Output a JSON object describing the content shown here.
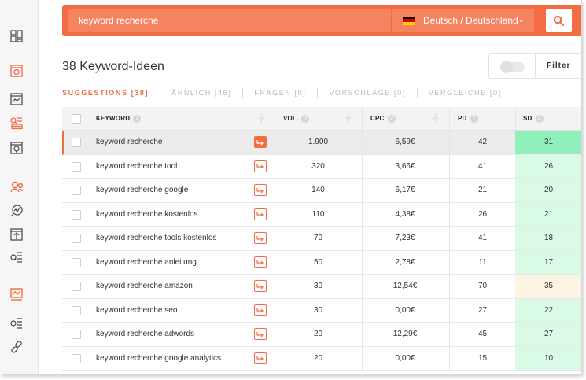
{
  "search": {
    "value": "keyword recherche",
    "language": "Deutsch / Deutschland"
  },
  "header": {
    "title": "38 Keyword-Ideen",
    "filter_label": "Filter"
  },
  "tabs": [
    {
      "label": "SUGGESTIONS [38]",
      "active": true
    },
    {
      "label": "ÄHNLICH [46]",
      "active": false
    },
    {
      "label": "FRAGEN [0]",
      "active": false
    },
    {
      "label": "VORSCHLÄGE [0]",
      "active": false
    },
    {
      "label": "VERGLEICHE [0]",
      "active": false
    }
  ],
  "columns": {
    "keyword": "KEYWORD",
    "vol": "VOL.",
    "cpc": "CPC",
    "pd": "PD",
    "sd": "SD"
  },
  "rows": [
    {
      "keyword": "keyword recherche",
      "vol": "1.900",
      "cpc": "6,59€",
      "pd": "42",
      "sd": "31",
      "sd_color": "#8ff0bc",
      "selected": true
    },
    {
      "keyword": "keyword recherche tool",
      "vol": "320",
      "cpc": "3,66€",
      "pd": "41",
      "sd": "26",
      "sd_color": "#d9fbe6",
      "selected": false
    },
    {
      "keyword": "keyword recherche google",
      "vol": "140",
      "cpc": "6,17€",
      "pd": "21",
      "sd": "20",
      "sd_color": "#d9fbe6",
      "selected": false
    },
    {
      "keyword": "keyword recherche kostenlos",
      "vol": "110",
      "cpc": "4,38€",
      "pd": "26",
      "sd": "21",
      "sd_color": "#d9fbe6",
      "selected": false
    },
    {
      "keyword": "keyword recherche tools kostenlos",
      "vol": "70",
      "cpc": "7,23€",
      "pd": "41",
      "sd": "18",
      "sd_color": "#d9fbe6",
      "selected": false
    },
    {
      "keyword": "keyword recherche anleitung",
      "vol": "50",
      "cpc": "2,78€",
      "pd": "11",
      "sd": "17",
      "sd_color": "#d9fbe6",
      "selected": false
    },
    {
      "keyword": "keyword recherche amazon",
      "vol": "30",
      "cpc": "12,54€",
      "pd": "70",
      "sd": "35",
      "sd_color": "#fdf3e2",
      "selected": false
    },
    {
      "keyword": "keyword recherche seo",
      "vol": "30",
      "cpc": "0,00€",
      "pd": "27",
      "sd": "22",
      "sd_color": "#d9fbe6",
      "selected": false
    },
    {
      "keyword": "keyword recherche adwords",
      "vol": "20",
      "cpc": "12,29€",
      "pd": "45",
      "sd": "27",
      "sd_color": "#d9fbe6",
      "selected": false
    },
    {
      "keyword": "keyword recherche google analytics",
      "vol": "20",
      "cpc": "0,00€",
      "pd": "15",
      "sd": "10",
      "sd_color": "#d9fbe6",
      "selected": false
    }
  ],
  "sidebar": {
    "items": [
      {
        "icon": "dashboard-icon",
        "active": false
      },
      {
        "icon": "site-audit-icon",
        "active": true
      },
      {
        "icon": "rank-tracker-icon",
        "active": false
      },
      {
        "icon": "keyword-ideas-icon",
        "active": true
      },
      {
        "icon": "content-ideas-icon",
        "active": false
      },
      {
        "icon": "backlinks-icon",
        "active": true
      },
      {
        "icon": "traffic-analyzer-icon",
        "active": false
      },
      {
        "icon": "top-pages-icon",
        "active": false
      },
      {
        "icon": "keywords-list-icon",
        "active": false
      },
      {
        "icon": "chart-icon",
        "active": true
      },
      {
        "icon": "settings-list-icon",
        "active": false
      },
      {
        "icon": "link-icon",
        "active": false
      }
    ]
  },
  "colors": {
    "accent": "#f36d43",
    "accent_light": "#f5835f"
  }
}
